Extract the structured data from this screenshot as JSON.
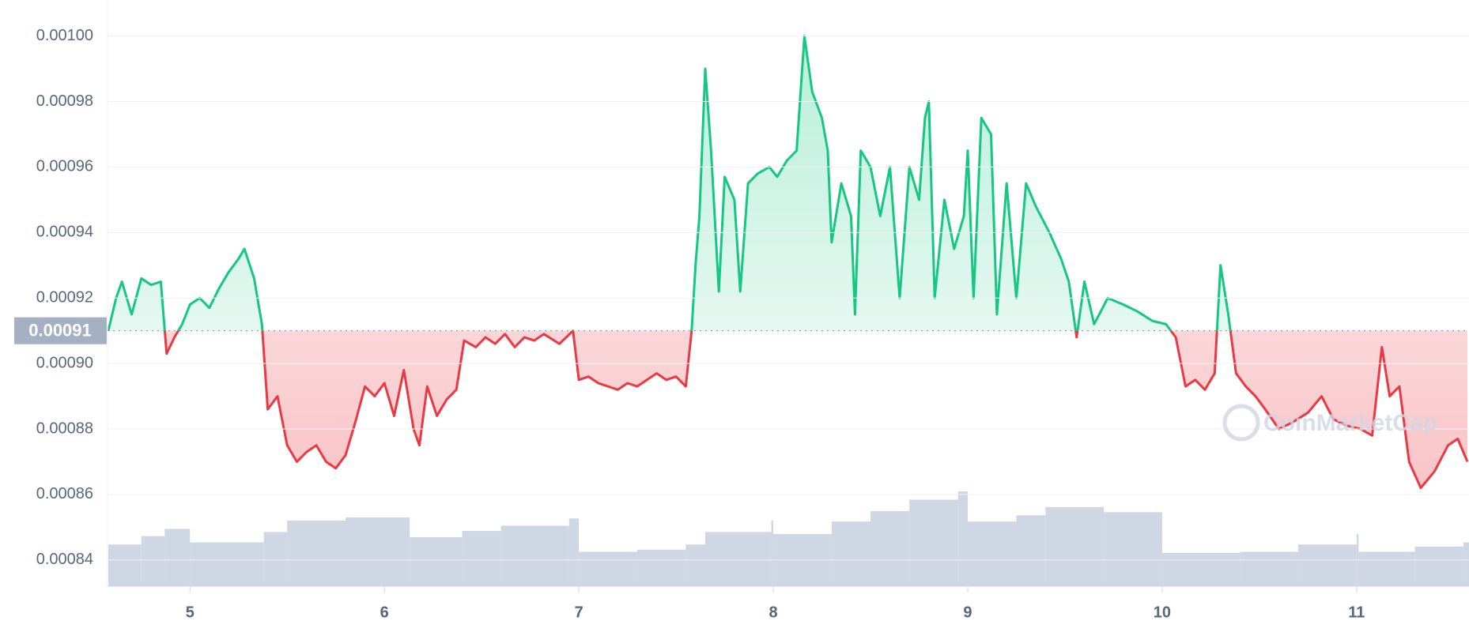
{
  "chart_data": {
    "type": "line",
    "watermark": "CoinMarketCap",
    "baseline": 0.00091,
    "above_color": "#16c784",
    "below_color": "#ea3943",
    "volume_color": "#cfd6e4",
    "xlim": [
      4.576,
      11.578
    ],
    "xticks": [
      5,
      6,
      7,
      8,
      9,
      10,
      11
    ],
    "ylim": [
      0.000832,
      0.001011
    ],
    "yticks": [
      0.00084,
      0.00086,
      0.00088,
      {
        "value": 0.0009,
        "label": "0.00090"
      },
      0.00092,
      0.00094,
      0.00096,
      0.00098,
      {
        "value": 0.001,
        "label": "0.00100"
      }
    ],
    "grid": true,
    "x": [
      4.58,
      4.62,
      4.65,
      4.7,
      4.75,
      4.8,
      4.85,
      4.88,
      4.92,
      4.96,
      5.0,
      5.05,
      5.1,
      5.15,
      5.2,
      5.25,
      5.28,
      5.33,
      5.37,
      5.4,
      5.45,
      5.5,
      5.55,
      5.6,
      5.65,
      5.7,
      5.75,
      5.8,
      5.85,
      5.9,
      5.95,
      6.0,
      6.05,
      6.1,
      6.15,
      6.18,
      6.22,
      6.27,
      6.32,
      6.37,
      6.41,
      6.47,
      6.52,
      6.57,
      6.62,
      6.67,
      6.72,
      6.77,
      6.82,
      6.9,
      6.97,
      7.0,
      7.05,
      7.1,
      7.15,
      7.2,
      7.25,
      7.3,
      7.35,
      7.4,
      7.45,
      7.5,
      7.55,
      7.58,
      7.6,
      7.62,
      7.65,
      7.68,
      7.72,
      7.75,
      7.8,
      7.83,
      7.87,
      7.92,
      7.98,
      8.02,
      8.07,
      8.12,
      8.16,
      8.2,
      8.25,
      8.28,
      8.3,
      8.35,
      8.4,
      8.42,
      8.45,
      8.5,
      8.55,
      8.6,
      8.65,
      8.7,
      8.75,
      8.78,
      8.8,
      8.83,
      8.88,
      8.93,
      8.98,
      9.0,
      9.03,
      9.07,
      9.12,
      9.15,
      9.2,
      9.25,
      9.3,
      9.35,
      9.42,
      9.48,
      9.52,
      9.56,
      9.6,
      9.65,
      9.72,
      9.8,
      9.87,
      9.95,
      10.02,
      10.07,
      10.12,
      10.17,
      10.22,
      10.27,
      10.3,
      10.34,
      10.38,
      10.43,
      10.48,
      10.53,
      10.6,
      10.67,
      10.75,
      10.82,
      10.88,
      10.95,
      11.02,
      11.08,
      11.13,
      11.17,
      11.22,
      11.27,
      11.33,
      11.4,
      11.47,
      11.52,
      11.57
    ],
    "series": [
      {
        "values": [
          0.00091,
          0.00092,
          0.000925,
          0.000915,
          0.000926,
          0.000924,
          0.000925,
          0.000903,
          0.000908,
          0.000912,
          0.000918,
          0.00092,
          0.000917,
          0.000923,
          0.000928,
          0.000932,
          0.000935,
          0.000926,
          0.000912,
          0.000886,
          0.00089,
          0.000875,
          0.00087,
          0.000873,
          0.000875,
          0.00087,
          0.000868,
          0.000872,
          0.000882,
          0.000893,
          0.00089,
          0.000894,
          0.000884,
          0.000898,
          0.00088,
          0.000875,
          0.000893,
          0.000884,
          0.000889,
          0.000892,
          0.000907,
          0.000905,
          0.000908,
          0.000906,
          0.000909,
          0.000905,
          0.000908,
          0.000907,
          0.000909,
          0.000906,
          0.00091,
          0.000895,
          0.000896,
          0.000894,
          0.000893,
          0.000892,
          0.000894,
          0.000893,
          0.000895,
          0.000897,
          0.000895,
          0.000896,
          0.000893,
          0.00091,
          0.00093,
          0.000945,
          0.00099,
          0.000965,
          0.000922,
          0.000957,
          0.00095,
          0.000922,
          0.000955,
          0.000958,
          0.00096,
          0.000957,
          0.000962,
          0.000965,
          0.001,
          0.000983,
          0.000975,
          0.000965,
          0.000937,
          0.000955,
          0.000945,
          0.000915,
          0.000965,
          0.00096,
          0.000945,
          0.00096,
          0.00092,
          0.00096,
          0.00095,
          0.000975,
          0.00098,
          0.00092,
          0.00095,
          0.000935,
          0.000945,
          0.000965,
          0.00092,
          0.000975,
          0.00097,
          0.000915,
          0.000955,
          0.00092,
          0.000955,
          0.000948,
          0.00094,
          0.000932,
          0.000925,
          0.000908,
          0.000925,
          0.000912,
          0.00092,
          0.000918,
          0.000916,
          0.000913,
          0.000912,
          0.000908,
          0.000893,
          0.000895,
          0.000892,
          0.000897,
          0.00093,
          0.000915,
          0.000897,
          0.000893,
          0.00089,
          0.000886,
          0.00088,
          0.000882,
          0.000885,
          0.00089,
          0.000883,
          0.000881,
          0.00088,
          0.000878,
          0.000905,
          0.00089,
          0.000893,
          0.00087,
          0.000862,
          0.000867,
          0.000875,
          0.000877,
          0.00087
        ]
      }
    ],
    "volume": {
      "x": [
        4.58,
        4.75,
        4.87,
        5.0,
        5.38,
        5.5,
        5.8,
        6.13,
        6.4,
        6.6,
        6.95,
        7.0,
        7.3,
        7.55,
        7.65,
        7.99,
        8.0,
        8.3,
        8.5,
        8.7,
        8.95,
        9.0,
        9.25,
        9.4,
        9.7,
        10.0,
        10.4,
        10.7,
        11.0,
        11.01,
        11.3,
        11.55
      ],
      "values": [
        40,
        48,
        55,
        42,
        52,
        63,
        66,
        47,
        53,
        58,
        65,
        33,
        35,
        40,
        52,
        63,
        50,
        62,
        72,
        83,
        91,
        62,
        68,
        76,
        71,
        32,
        33,
        40,
        50,
        33,
        38,
        42
      ]
    }
  }
}
